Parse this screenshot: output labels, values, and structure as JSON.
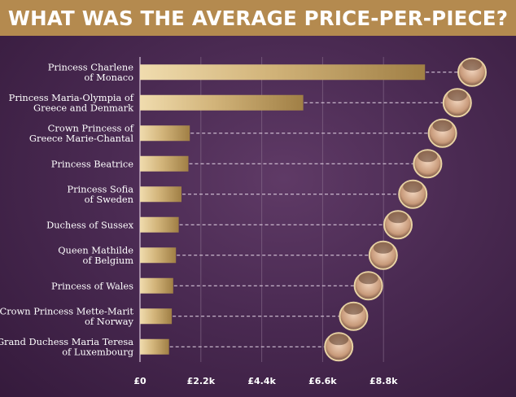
{
  "title": "WHAT WAS THE AVERAGE PRICE-PER-PIECE?",
  "colors": {
    "title_bar": "#b48a4f",
    "background": "#4a2a52",
    "bar_light": "#f0dcae",
    "bar_dark": "#a07f45",
    "gridline": "#8a6f8e",
    "text": "#ffffff"
  },
  "icons": [
    "portrait-photo"
  ],
  "chart_data": {
    "type": "bar",
    "orientation": "horizontal",
    "categories": [
      [
        "Princess Charlene",
        "of Monaco"
      ],
      [
        "Princess Maria-Olympia of",
        "Greece and Denmark"
      ],
      [
        "Crown Princess of",
        "Greece Marie-Chantal"
      ],
      [
        "Princess Beatrice"
      ],
      [
        "Princess Sofia",
        "of Sweden"
      ],
      [
        "Duchess of Sussex"
      ],
      [
        "Queen Mathilde",
        "of Belgium"
      ],
      [
        "Princess of Wales"
      ],
      [
        "Crown Princess Mette-Marit",
        "of Norway"
      ],
      [
        "Grand Duchess Maria Teresa",
        "of Luxembourg"
      ]
    ],
    "values": [
      10300,
      5900,
      1800,
      1750,
      1500,
      1400,
      1300,
      1200,
      1150,
      1050
    ],
    "xlim": [
      0,
      11000
    ],
    "ticks": [
      0,
      2200,
      4400,
      6600,
      8800
    ],
    "tick_labels": [
      "£0",
      "£2.2k",
      "£4.4k",
      "£6.6k",
      "£8.8k"
    ],
    "grid": true,
    "xlabel": "",
    "ylabel": ""
  }
}
